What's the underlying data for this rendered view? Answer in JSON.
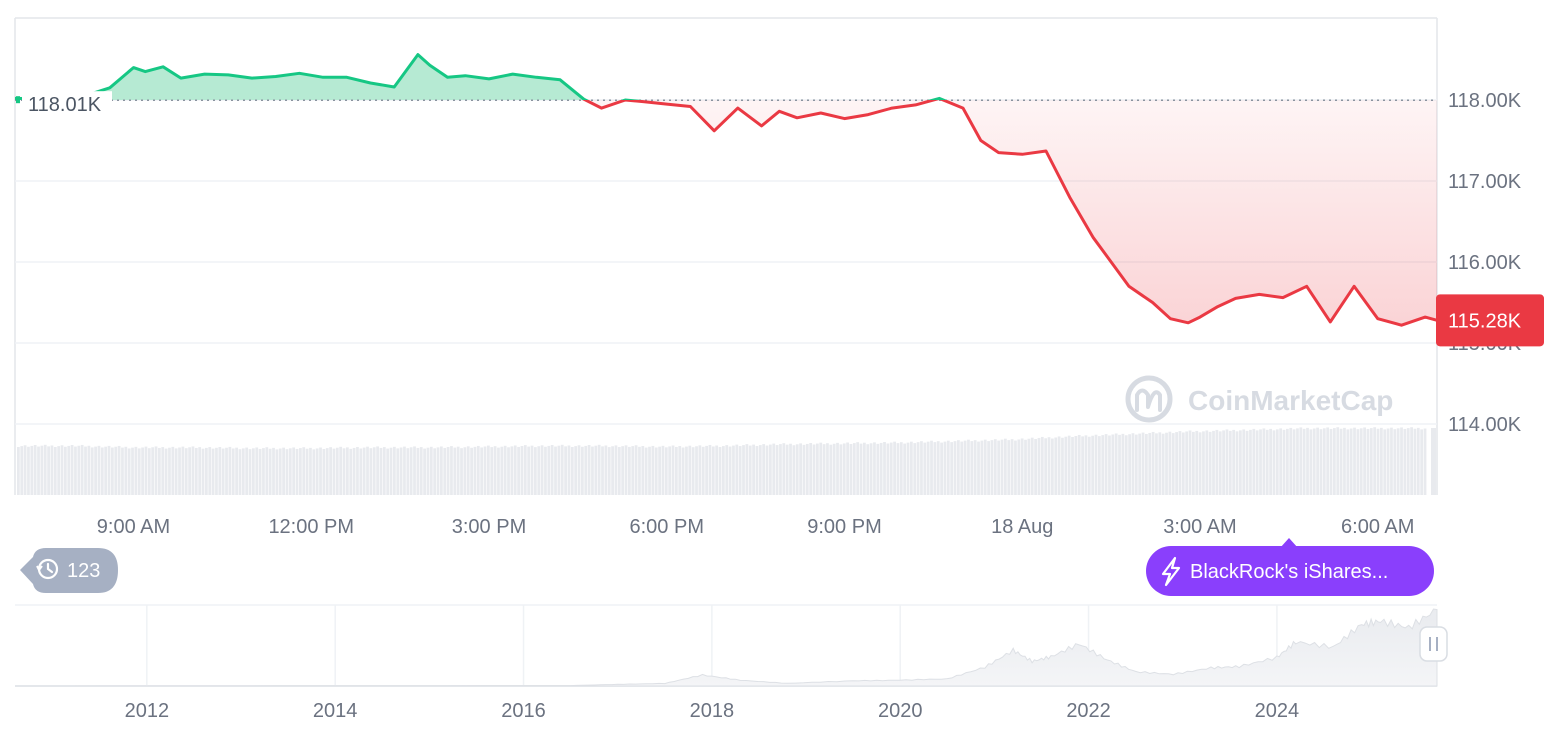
{
  "chart_data": [
    {
      "type": "line",
      "reference_value": 118010,
      "reference_label": "118.01K",
      "current_value": 115280,
      "current_label": "115.28K",
      "ylim": [
        113000,
        119000
      ],
      "y_ticks": [
        {
          "value": 118000,
          "label": "118.00K"
        },
        {
          "value": 117000,
          "label": "117.00K"
        },
        {
          "value": 116000,
          "label": "116.00K"
        },
        {
          "value": 115000,
          "label": "115.00K"
        },
        {
          "value": 114000,
          "label": "114.00K"
        }
      ],
      "x_ticks": [
        {
          "value": 9,
          "label": "9:00 AM"
        },
        {
          "value": 12,
          "label": "12:00 PM"
        },
        {
          "value": 15,
          "label": "3:00 PM"
        },
        {
          "value": 18,
          "label": "6:00 PM"
        },
        {
          "value": 21,
          "label": "9:00 PM"
        },
        {
          "value": 24,
          "label": "18 Aug"
        },
        {
          "value": 27,
          "label": "3:00 AM"
        },
        {
          "value": 30,
          "label": "6:00 AM"
        }
      ],
      "xlim": [
        7.0,
        31.0
      ],
      "series": [
        {
          "x": [
            7.0,
            8.0,
            8.6,
            9.0,
            9.2,
            9.5,
            9.8,
            10.2,
            10.6,
            11.0,
            11.4,
            11.8,
            12.2,
            12.6,
            13.0,
            13.4,
            13.8,
            14.0,
            14.3,
            14.6,
            15.0,
            15.4,
            15.8,
            16.2,
            16.6,
            16.9,
            17.3,
            17.6,
            18.0,
            18.4,
            18.8,
            19.2,
            19.6,
            19.9,
            20.2,
            20.6,
            21.0,
            21.4,
            21.8,
            22.2,
            22.6,
            23.0,
            23.3,
            23.6,
            24.0,
            24.4,
            24.8,
            25.2,
            25.4,
            25.8,
            26.2,
            26.5,
            26.8,
            27.0,
            27.3,
            27.6,
            28.0,
            28.4,
            28.8,
            29.2,
            29.6,
            30.0,
            30.4,
            30.8,
            31.0
          ],
          "y": [
            118020,
            118010,
            118150,
            118400,
            118350,
            118410,
            118270,
            118320,
            118310,
            118270,
            118290,
            118330,
            118280,
            118280,
            118210,
            118160,
            118560,
            118430,
            118280,
            118300,
            118260,
            118320,
            118280,
            118250,
            118010,
            117900,
            118000,
            117980,
            117950,
            117920,
            117620,
            117900,
            117680,
            117860,
            117780,
            117840,
            117770,
            117820,
            117900,
            117940,
            118020,
            117900,
            117500,
            117350,
            117330,
            117370,
            116800,
            116300,
            116100,
            115700,
            115500,
            115300,
            115250,
            115320,
            115450,
            115550,
            115600,
            115560,
            115700,
            115260,
            115700,
            115300,
            115220,
            115320,
            115280
          ]
        }
      ],
      "volume_values": [
        0.6,
        0.6,
        0.58,
        0.58,
        0.57,
        0.57,
        0.58,
        0.58,
        0.59,
        0.6,
        0.6,
        0.59,
        0.6,
        0.62,
        0.63,
        0.64,
        0.66,
        0.68,
        0.72,
        0.75,
        0.78,
        0.8,
        0.82,
        0.82,
        0.82
      ],
      "watermark": "CoinMarketCap"
    },
    {
      "type": "area",
      "x_ticks": [
        {
          "value": 2012,
          "label": "2012"
        },
        {
          "value": 2014,
          "label": "2014"
        },
        {
          "value": 2016,
          "label": "2016"
        },
        {
          "value": 2018,
          "label": "2018"
        },
        {
          "value": 2020,
          "label": "2020"
        },
        {
          "value": 2022,
          "label": "2022"
        },
        {
          "value": 2024,
          "label": "2024"
        }
      ],
      "xlim": [
        2010.6,
        2025.7
      ],
      "ylim": [
        0,
        125000
      ],
      "series": [
        {
          "x": [
            2010.6,
            2013.0,
            2016.5,
            2017.0,
            2017.5,
            2017.9,
            2018.3,
            2018.8,
            2019.5,
            2020.0,
            2020.5,
            2020.9,
            2021.2,
            2021.4,
            2021.6,
            2021.9,
            2022.2,
            2022.5,
            2022.9,
            2023.3,
            2023.6,
            2024.0,
            2024.2,
            2024.6,
            2024.9,
            2025.1,
            2025.4,
            2025.7
          ],
          "y": [
            0,
            200,
            700,
            2500,
            4000,
            17000,
            9000,
            4000,
            8000,
            9000,
            11000,
            29000,
            55000,
            38000,
            45000,
            65000,
            40000,
            22000,
            18000,
            28000,
            30000,
            44000,
            68000,
            60000,
            95000,
            100000,
            90000,
            118000
          ]
        }
      ]
    }
  ],
  "history_badge": {
    "icon": "history-icon",
    "count": "123"
  },
  "news_badge": {
    "icon": "lightning-icon",
    "label": "BlackRock's iShares..."
  },
  "handle_icon": "pause-handle-icon",
  "colors": {
    "up": "#16c784",
    "down": "#ea3943",
    "up_fill": "#b6ead3",
    "down_fill": "#fbd9dc",
    "volume": "#e8eaee",
    "news": "#8a3ffc",
    "history": "#a6b0c3",
    "grid": "#eff2f5"
  }
}
